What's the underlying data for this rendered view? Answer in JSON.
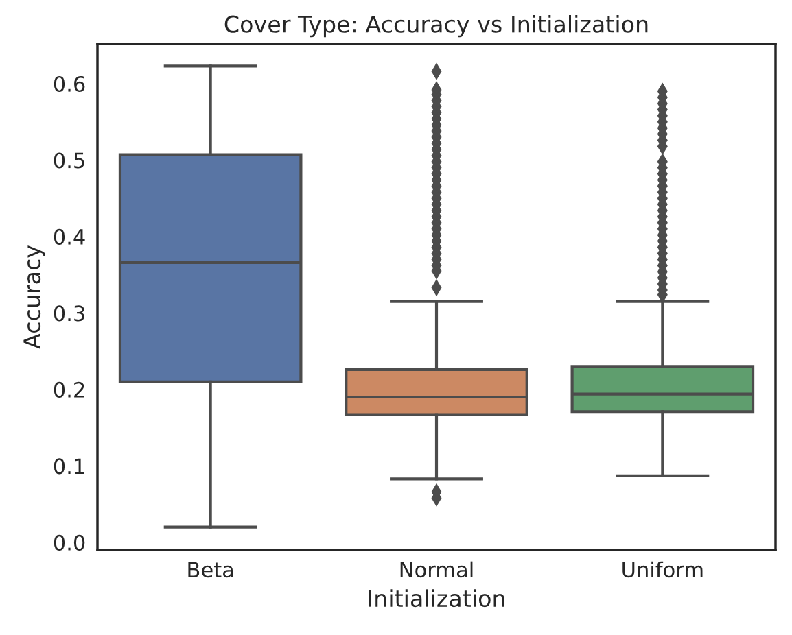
{
  "chart_data": {
    "type": "box",
    "title": "Cover Type: Accuracy vs Initialization",
    "xlabel": "Initialization",
    "ylabel": "Accuracy",
    "categories": [
      "Beta",
      "Normal",
      "Uniform"
    ],
    "colors": [
      "#5975a4",
      "#cc8963",
      "#5f9e6e"
    ],
    "boxes": [
      {
        "low": 0.02,
        "q1": 0.21,
        "median": 0.366,
        "q3": 0.507,
        "high": 0.623
      },
      {
        "low": 0.083,
        "q1": 0.167,
        "median": 0.19,
        "q3": 0.226,
        "high": 0.315,
        "outliers": [
          0.058,
          0.066,
          0.333,
          0.355,
          0.362,
          0.37,
          0.378,
          0.386,
          0.394,
          0.402,
          0.41,
          0.418,
          0.426,
          0.434,
          0.442,
          0.45,
          0.458,
          0.466,
          0.474,
          0.482,
          0.49,
          0.498,
          0.506,
          0.514,
          0.522,
          0.53,
          0.538,
          0.546,
          0.554,
          0.562,
          0.57,
          0.578,
          0.586,
          0.592,
          0.616
        ]
      },
      {
        "low": 0.087,
        "q1": 0.171,
        "median": 0.194,
        "q3": 0.23,
        "high": 0.315,
        "outliers": [
          0.324,
          0.33,
          0.338,
          0.346,
          0.354,
          0.362,
          0.37,
          0.378,
          0.386,
          0.394,
          0.402,
          0.41,
          0.418,
          0.426,
          0.434,
          0.442,
          0.45,
          0.458,
          0.466,
          0.474,
          0.482,
          0.49,
          0.498,
          0.518,
          0.526,
          0.534,
          0.542,
          0.55,
          0.558,
          0.566,
          0.574,
          0.582,
          0.59
        ]
      }
    ],
    "ylim": [
      -0.01,
      0.652
    ],
    "yticks": [
      {
        "value": 0.0,
        "label": "0.0"
      },
      {
        "value": 0.1,
        "label": "0.1"
      },
      {
        "value": 0.2,
        "label": "0.2"
      },
      {
        "value": 0.3,
        "label": "0.3"
      },
      {
        "value": 0.4,
        "label": "0.4"
      },
      {
        "value": 0.5,
        "label": "0.5"
      },
      {
        "value": 0.6,
        "label": "0.6"
      }
    ],
    "marker": "diamond",
    "grid": false
  }
}
